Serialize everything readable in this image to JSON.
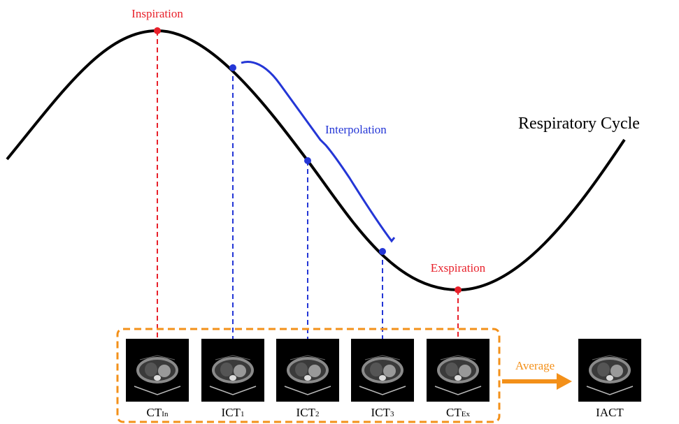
{
  "labels": {
    "inspiration": "Inspiration",
    "interpolation": "Interpolation",
    "cycle": "Respiratory Cycle",
    "exspiration": "Exspiration",
    "average": "Average"
  },
  "images": [
    {
      "base": "CT",
      "sub": "In"
    },
    {
      "base": "ICT",
      "sub": "1"
    },
    {
      "base": "ICT",
      "sub": "2"
    },
    {
      "base": "ICT",
      "sub": "3"
    },
    {
      "base": "CT",
      "sub": "Ex"
    }
  ],
  "result": "IACT"
}
